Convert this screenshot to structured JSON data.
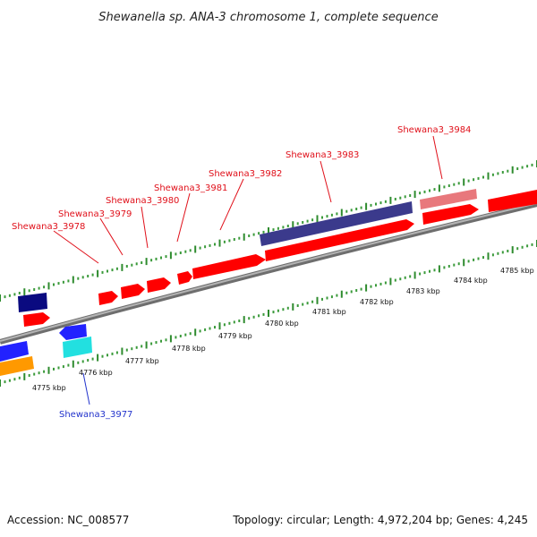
{
  "title": "Shewanella sp. ANA-3 chromosome 1, complete sequence",
  "footer": {
    "accession": "Accession: NC_008577",
    "topology": "Topology: circular; Length: 4,972,204 bp; Genes: 4,245"
  },
  "colors": {
    "backbone": "#8c8c8c",
    "tick_major": "#2e8b2e",
    "tick_minor": "#3a9a3a",
    "label_red": "#e0101a",
    "label_blue": "#2233cc",
    "forward_cds": "#ff0000",
    "reverse_cds": "#2222ff",
    "navy_feature": "#0a0a80",
    "purple_feature": "#3b3a8c",
    "pink_feature": "#e8787c",
    "cyan_feature": "#22e0e0",
    "orange_feature": "#ff9900"
  },
  "kbp_labels": [
    "4775 kbp",
    "4776 kbp",
    "4777 kbp",
    "4778 kbp",
    "4779 kbp",
    "4780 kbp",
    "4781 kbp",
    "4782 kbp",
    "4783 kbp",
    "4784 kbp",
    "4785 kbp"
  ],
  "gene_labels": [
    {
      "text": "Shewana3_3978",
      "color": "red"
    },
    {
      "text": "Shewana3_3979",
      "color": "red"
    },
    {
      "text": "Shewana3_3980",
      "color": "red"
    },
    {
      "text": "Shewana3_3981",
      "color": "red"
    },
    {
      "text": "Shewana3_3982",
      "color": "red"
    },
    {
      "text": "Shewana3_3983",
      "color": "red"
    },
    {
      "text": "Shewana3_3984",
      "color": "red"
    },
    {
      "text": "Shewana3_3977",
      "color": "blue"
    }
  ]
}
